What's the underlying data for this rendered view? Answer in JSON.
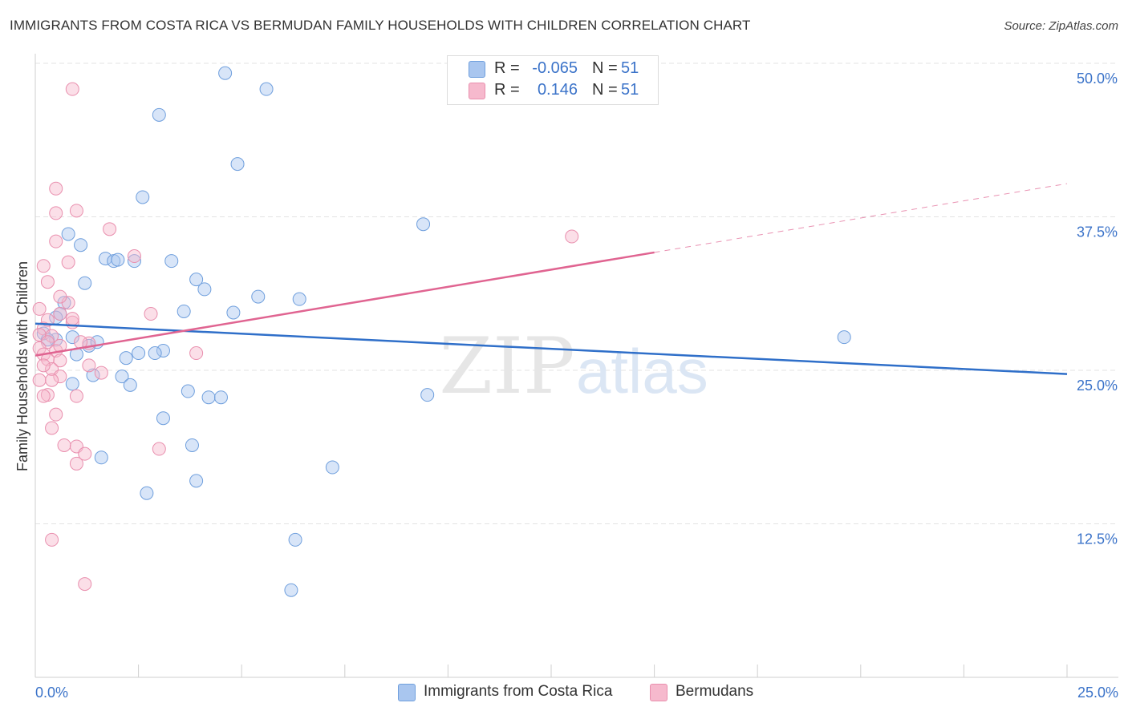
{
  "title": "IMMIGRANTS FROM COSTA RICA VS BERMUDAN FAMILY HOUSEHOLDS WITH CHILDREN CORRELATION CHART",
  "source": "Source: ZipAtlas.com",
  "watermark": {
    "zip": "ZIP",
    "atlas": "atlas"
  },
  "colors": {
    "blue_fill": "#a9c6ef",
    "blue_stroke": "#6f9fdd",
    "blue_line": "#2f6fc9",
    "pink_fill": "#f6b9cd",
    "pink_stroke": "#e98fae",
    "pink_line": "#e06491",
    "tick_label": "#3b73c9",
    "grid": "#e3e3e3"
  },
  "legend": [
    {
      "swatch": "blue",
      "r_label": "R =",
      "r_value": "-0.065",
      "n_label": "N =",
      "n_value": "51"
    },
    {
      "swatch": "pink",
      "r_label": "R =",
      "r_value": "0.146",
      "n_label": "N =",
      "n_value": "51"
    }
  ],
  "chart_data": {
    "type": "scatter",
    "title": "IMMIGRANTS FROM COSTA RICA VS BERMUDAN FAMILY HOUSEHOLDS WITH CHILDREN CORRELATION CHART",
    "xlabel": "",
    "ylabel": "Family Households with Children",
    "xlim": [
      0,
      25
    ],
    "ylim": [
      0,
      50
    ],
    "x_tick_labels": [
      {
        "value": 0,
        "label": "0.0%"
      },
      {
        "value": 25,
        "label": "25.0%"
      }
    ],
    "y_tick_labels": [
      {
        "value": 12.5,
        "label": "12.5%"
      },
      {
        "value": 25,
        "label": "25.0%"
      },
      {
        "value": 37.5,
        "label": "37.5%"
      },
      {
        "value": 50,
        "label": "50.0%"
      }
    ],
    "grid": true,
    "series": [
      {
        "name": "Immigrants from Costa Rica",
        "color": "blue",
        "points": [
          [
            4.6,
            49.2
          ],
          [
            5.6,
            47.9
          ],
          [
            3.0,
            45.8
          ],
          [
            4.9,
            41.8
          ],
          [
            2.6,
            39.1
          ],
          [
            9.4,
            36.9
          ],
          [
            0.8,
            36.1
          ],
          [
            1.1,
            35.2
          ],
          [
            1.7,
            34.1
          ],
          [
            1.9,
            33.9
          ],
          [
            2.4,
            33.9
          ],
          [
            2.0,
            34.0
          ],
          [
            3.3,
            33.9
          ],
          [
            3.9,
            32.4
          ],
          [
            4.1,
            31.6
          ],
          [
            1.2,
            32.1
          ],
          [
            5.4,
            31.0
          ],
          [
            6.4,
            30.8
          ],
          [
            0.7,
            30.5
          ],
          [
            3.6,
            29.8
          ],
          [
            4.8,
            29.7
          ],
          [
            0.6,
            29.6
          ],
          [
            0.5,
            29.3
          ],
          [
            0.2,
            28.0
          ],
          [
            0.5,
            27.5
          ],
          [
            0.3,
            27.5
          ],
          [
            0.9,
            27.7
          ],
          [
            1.3,
            27.0
          ],
          [
            1.0,
            26.3
          ],
          [
            2.5,
            26.4
          ],
          [
            3.1,
            26.6
          ],
          [
            2.2,
            26.0
          ],
          [
            2.9,
            26.4
          ],
          [
            1.4,
            24.6
          ],
          [
            2.1,
            24.5
          ],
          [
            0.9,
            23.9
          ],
          [
            2.3,
            23.8
          ],
          [
            3.7,
            23.3
          ],
          [
            4.2,
            22.8
          ],
          [
            4.5,
            22.8
          ],
          [
            9.5,
            23.0
          ],
          [
            19.6,
            27.7
          ],
          [
            3.1,
            21.1
          ],
          [
            3.8,
            18.9
          ],
          [
            1.6,
            17.9
          ],
          [
            7.2,
            17.1
          ],
          [
            3.9,
            16.0
          ],
          [
            2.7,
            15.0
          ],
          [
            6.3,
            11.2
          ],
          [
            6.2,
            7.1
          ],
          [
            1.5,
            27.3
          ]
        ]
      },
      {
        "name": "Bermudans",
        "color": "pink",
        "points": [
          [
            0.9,
            47.9
          ],
          [
            0.5,
            39.8
          ],
          [
            1.0,
            38.0
          ],
          [
            0.5,
            37.8
          ],
          [
            1.8,
            36.5
          ],
          [
            13.0,
            35.9
          ],
          [
            0.5,
            35.5
          ],
          [
            2.4,
            34.3
          ],
          [
            0.8,
            33.8
          ],
          [
            0.2,
            33.5
          ],
          [
            0.3,
            32.2
          ],
          [
            0.8,
            30.5
          ],
          [
            0.6,
            29.6
          ],
          [
            0.3,
            29.1
          ],
          [
            0.9,
            28.9
          ],
          [
            0.2,
            28.4
          ],
          [
            0.1,
            27.9
          ],
          [
            0.4,
            27.8
          ],
          [
            0.3,
            27.3
          ],
          [
            1.3,
            27.2
          ],
          [
            0.1,
            26.8
          ],
          [
            0.5,
            26.6
          ],
          [
            0.2,
            26.3
          ],
          [
            0.3,
            25.9
          ],
          [
            0.6,
            25.8
          ],
          [
            3.9,
            26.4
          ],
          [
            1.3,
            25.4
          ],
          [
            0.4,
            25.1
          ],
          [
            0.6,
            24.5
          ],
          [
            0.1,
            24.2
          ],
          [
            0.4,
            24.2
          ],
          [
            1.6,
            24.8
          ],
          [
            0.3,
            23.0
          ],
          [
            0.2,
            22.9
          ],
          [
            1.0,
            22.9
          ],
          [
            0.5,
            21.4
          ],
          [
            0.4,
            20.3
          ],
          [
            0.7,
            18.9
          ],
          [
            1.0,
            18.8
          ],
          [
            3.0,
            18.6
          ],
          [
            1.2,
            18.2
          ],
          [
            1.0,
            17.4
          ],
          [
            0.4,
            11.2
          ],
          [
            1.2,
            7.6
          ],
          [
            1.1,
            27.3
          ],
          [
            0.9,
            29.2
          ],
          [
            2.8,
            29.6
          ],
          [
            0.1,
            30.0
          ],
          [
            0.6,
            31.0
          ],
          [
            0.6,
            27.0
          ],
          [
            0.2,
            25.4
          ]
        ]
      }
    ],
    "trendlines": [
      {
        "series": "Immigrants from Costa Rica",
        "x": [
          0,
          25
        ],
        "y": [
          28.8,
          24.7
        ],
        "style": "solid"
      },
      {
        "series": "Bermudans",
        "x": [
          0,
          15
        ],
        "y": [
          26.2,
          34.6
        ],
        "style": "solid"
      },
      {
        "series": "Bermudans",
        "x": [
          15,
          25
        ],
        "y": [
          34.6,
          40.2
        ],
        "style": "dashed"
      }
    ]
  },
  "bottom_legend": [
    {
      "swatch": "blue",
      "label": "Immigrants from Costa Rica"
    },
    {
      "swatch": "pink",
      "label": "Bermudans"
    }
  ]
}
